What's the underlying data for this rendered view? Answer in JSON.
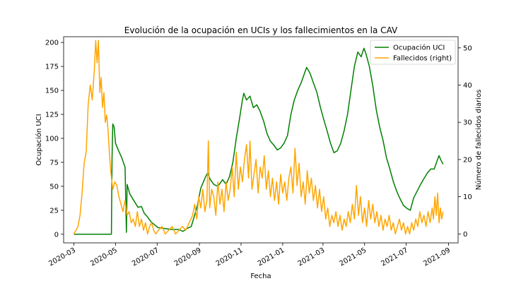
{
  "chart_data": {
    "type": "line",
    "title": "Evolución de la ocupación en UCIs y los fallecimientos en la CAV",
    "xlabel": "Fecha",
    "ylabel": "Ocupación UCI",
    "ylabel_right": "Número de fallecidos diarios",
    "x_ticks": [
      "2020-03",
      "2020-05",
      "2020-07",
      "2020-09",
      "2020-11",
      "2021-01",
      "2021-03",
      "2021-05",
      "2021-07",
      "2021-09"
    ],
    "y_ticks": [
      0,
      25,
      50,
      75,
      100,
      125,
      150,
      175,
      200
    ],
    "y_right_ticks": [
      0,
      10,
      20,
      30,
      40,
      50
    ],
    "xlim": [
      "2020-02-15",
      "2021-09-15"
    ],
    "ylim": [
      -9,
      206
    ],
    "ylim_right": [
      -2.4,
      53
    ],
    "legend_position": "top-right",
    "colors": {
      "uci": "#008000",
      "deaths": "#ffa500"
    },
    "series": [
      {
        "name": "Ocupación UCI",
        "axis": "left",
        "points": [
          [
            "2020-03-01",
            0
          ],
          [
            "2020-03-20",
            0
          ],
          [
            "2020-04-10",
            0
          ],
          [
            "2020-04-25",
            0
          ],
          [
            "2020-04-26",
            80
          ],
          [
            "2020-04-27",
            115
          ],
          [
            "2020-04-29",
            112
          ],
          [
            "2020-05-01",
            95
          ],
          [
            "2020-05-05",
            88
          ],
          [
            "2020-05-10",
            80
          ],
          [
            "2020-05-15",
            70
          ],
          [
            "2020-05-17",
            2
          ],
          [
            "2020-05-18",
            52
          ],
          [
            "2020-05-22",
            42
          ],
          [
            "2020-05-28",
            35
          ],
          [
            "2020-06-03",
            28
          ],
          [
            "2020-06-08",
            29
          ],
          [
            "2020-06-12",
            22
          ],
          [
            "2020-06-17",
            18
          ],
          [
            "2020-06-22",
            13
          ],
          [
            "2020-06-27",
            10
          ],
          [
            "2020-07-02",
            7
          ],
          [
            "2020-07-12",
            6
          ],
          [
            "2020-07-22",
            5
          ],
          [
            "2020-08-01",
            5
          ],
          [
            "2020-08-08",
            3
          ],
          [
            "2020-08-14",
            6
          ],
          [
            "2020-08-20",
            8
          ],
          [
            "2020-08-25",
            20
          ],
          [
            "2020-08-29",
            30
          ],
          [
            "2020-09-03",
            48
          ],
          [
            "2020-09-10",
            60
          ],
          [
            "2020-09-13",
            64
          ],
          [
            "2020-09-17",
            57
          ],
          [
            "2020-09-22",
            52
          ],
          [
            "2020-09-28",
            50
          ],
          [
            "2020-10-05",
            57
          ],
          [
            "2020-10-10",
            52
          ],
          [
            "2020-10-15",
            60
          ],
          [
            "2020-10-20",
            75
          ],
          [
            "2020-10-25",
            100
          ],
          [
            "2020-10-30",
            122
          ],
          [
            "2020-11-03",
            140
          ],
          [
            "2020-11-05",
            147
          ],
          [
            "2020-11-09",
            140
          ],
          [
            "2020-11-14",
            144
          ],
          [
            "2020-11-19",
            132
          ],
          [
            "2020-11-24",
            135
          ],
          [
            "2020-11-29",
            128
          ],
          [
            "2020-12-04",
            118
          ],
          [
            "2020-12-09",
            105
          ],
          [
            "2020-12-14",
            97
          ],
          [
            "2020-12-19",
            93
          ],
          [
            "2020-12-24",
            88
          ],
          [
            "2020-12-29",
            90
          ],
          [
            "2021-01-03",
            95
          ],
          [
            "2021-01-08",
            103
          ],
          [
            "2021-01-13",
            125
          ],
          [
            "2021-01-18",
            140
          ],
          [
            "2021-01-23",
            150
          ],
          [
            "2021-01-28",
            158
          ],
          [
            "2021-02-02",
            168
          ],
          [
            "2021-02-05",
            174
          ],
          [
            "2021-02-10",
            168
          ],
          [
            "2021-02-15",
            158
          ],
          [
            "2021-02-20",
            148
          ],
          [
            "2021-02-25",
            133
          ],
          [
            "2021-03-02",
            120
          ],
          [
            "2021-03-07",
            108
          ],
          [
            "2021-03-12",
            95
          ],
          [
            "2021-03-17",
            85
          ],
          [
            "2021-03-22",
            87
          ],
          [
            "2021-03-27",
            95
          ],
          [
            "2021-04-01",
            108
          ],
          [
            "2021-04-06",
            125
          ],
          [
            "2021-04-11",
            150
          ],
          [
            "2021-04-16",
            175
          ],
          [
            "2021-04-21",
            190
          ],
          [
            "2021-04-26",
            185
          ],
          [
            "2021-04-30",
            194
          ],
          [
            "2021-05-03",
            188
          ],
          [
            "2021-05-08",
            175
          ],
          [
            "2021-05-13",
            155
          ],
          [
            "2021-05-18",
            130
          ],
          [
            "2021-05-23",
            112
          ],
          [
            "2021-05-28",
            98
          ],
          [
            "2021-06-02",
            80
          ],
          [
            "2021-06-07",
            68
          ],
          [
            "2021-06-12",
            55
          ],
          [
            "2021-06-17",
            45
          ],
          [
            "2021-06-22",
            37
          ],
          [
            "2021-06-27",
            30
          ],
          [
            "2021-07-02",
            27
          ],
          [
            "2021-07-07",
            25
          ],
          [
            "2021-07-12",
            38
          ],
          [
            "2021-07-17",
            45
          ],
          [
            "2021-07-22",
            52
          ],
          [
            "2021-07-27",
            58
          ],
          [
            "2021-08-01",
            64
          ],
          [
            "2021-08-06",
            68
          ],
          [
            "2021-08-11",
            68
          ],
          [
            "2021-08-16",
            78
          ],
          [
            "2021-08-18",
            82
          ],
          [
            "2021-08-21",
            77
          ],
          [
            "2021-08-24",
            73
          ]
        ]
      },
      {
        "name": "Fallecidos (right)",
        "axis": "right",
        "points": [
          [
            "2020-03-01",
            0
          ],
          [
            "2020-03-04",
            1
          ],
          [
            "2020-03-07",
            2
          ],
          [
            "2020-03-10",
            5
          ],
          [
            "2020-03-13",
            11
          ],
          [
            "2020-03-16",
            19
          ],
          [
            "2020-03-19",
            22
          ],
          [
            "2020-03-22",
            35
          ],
          [
            "2020-03-25",
            40
          ],
          [
            "2020-03-28",
            36
          ],
          [
            "2020-03-31",
            44
          ],
          [
            "2020-04-02",
            52
          ],
          [
            "2020-04-04",
            46
          ],
          [
            "2020-04-06",
            52
          ],
          [
            "2020-04-08",
            38
          ],
          [
            "2020-04-10",
            42
          ],
          [
            "2020-04-12",
            34
          ],
          [
            "2020-04-14",
            38
          ],
          [
            "2020-04-16",
            30
          ],
          [
            "2020-04-18",
            32
          ],
          [
            "2020-04-20",
            28
          ],
          [
            "2020-04-22",
            22
          ],
          [
            "2020-04-24",
            17
          ],
          [
            "2020-04-27",
            12
          ],
          [
            "2020-04-30",
            14
          ],
          [
            "2020-05-03",
            13
          ],
          [
            "2020-05-06",
            10
          ],
          [
            "2020-05-09",
            8
          ],
          [
            "2020-05-12",
            6
          ],
          [
            "2020-05-15",
            9
          ],
          [
            "2020-05-18",
            5
          ],
          [
            "2020-05-21",
            6
          ],
          [
            "2020-05-24",
            3
          ],
          [
            "2020-05-27",
            4
          ],
          [
            "2020-05-30",
            2
          ],
          [
            "2020-06-02",
            6
          ],
          [
            "2020-06-05",
            2
          ],
          [
            "2020-06-08",
            4
          ],
          [
            "2020-06-11",
            1
          ],
          [
            "2020-06-14",
            3
          ],
          [
            "2020-06-17",
            0
          ],
          [
            "2020-06-20",
            2
          ],
          [
            "2020-06-23",
            3
          ],
          [
            "2020-06-26",
            1
          ],
          [
            "2020-06-29",
            0
          ],
          [
            "2020-07-03",
            1
          ],
          [
            "2020-07-08",
            2
          ],
          [
            "2020-07-13",
            0
          ],
          [
            "2020-07-18",
            1
          ],
          [
            "2020-07-23",
            2
          ],
          [
            "2020-07-28",
            0
          ],
          [
            "2020-08-02",
            1
          ],
          [
            "2020-08-07",
            2
          ],
          [
            "2020-08-12",
            1
          ],
          [
            "2020-08-17",
            3
          ],
          [
            "2020-08-22",
            5
          ],
          [
            "2020-08-25",
            8
          ],
          [
            "2020-08-28",
            4
          ],
          [
            "2020-08-31",
            10
          ],
          [
            "2020-09-03",
            7
          ],
          [
            "2020-09-06",
            12
          ],
          [
            "2020-09-09",
            6
          ],
          [
            "2020-09-12",
            9
          ],
          [
            "2020-09-14",
            25
          ],
          [
            "2020-09-16",
            7
          ],
          [
            "2020-09-19",
            12
          ],
          [
            "2020-09-22",
            10
          ],
          [
            "2020-09-25",
            5
          ],
          [
            "2020-09-28",
            14
          ],
          [
            "2020-10-01",
            8
          ],
          [
            "2020-10-04",
            12
          ],
          [
            "2020-10-07",
            6
          ],
          [
            "2020-10-10",
            14
          ],
          [
            "2020-10-13",
            9
          ],
          [
            "2020-10-16",
            12
          ],
          [
            "2020-10-19",
            18
          ],
          [
            "2020-10-22",
            10
          ],
          [
            "2020-10-25",
            22
          ],
          [
            "2020-10-28",
            12
          ],
          [
            "2020-10-31",
            18
          ],
          [
            "2020-11-03",
            14
          ],
          [
            "2020-11-06",
            20
          ],
          [
            "2020-11-09",
            24
          ],
          [
            "2020-11-12",
            15
          ],
          [
            "2020-11-14",
            25
          ],
          [
            "2020-11-17",
            12
          ],
          [
            "2020-11-20",
            16
          ],
          [
            "2020-11-23",
            20
          ],
          [
            "2020-11-26",
            11
          ],
          [
            "2020-11-29",
            18
          ],
          [
            "2020-12-02",
            15
          ],
          [
            "2020-12-05",
            21
          ],
          [
            "2020-12-08",
            12
          ],
          [
            "2020-12-11",
            17
          ],
          [
            "2020-12-14",
            10
          ],
          [
            "2020-12-17",
            15
          ],
          [
            "2020-12-20",
            9
          ],
          [
            "2020-12-23",
            14
          ],
          [
            "2020-12-26",
            8
          ],
          [
            "2020-12-29",
            16
          ],
          [
            "2021-01-01",
            11
          ],
          [
            "2021-01-04",
            14
          ],
          [
            "2021-01-07",
            9
          ],
          [
            "2021-01-10",
            15
          ],
          [
            "2021-01-13",
            18
          ],
          [
            "2021-01-16",
            11
          ],
          [
            "2021-01-19",
            23
          ],
          [
            "2021-01-22",
            13
          ],
          [
            "2021-01-25",
            19
          ],
          [
            "2021-01-28",
            10
          ],
          [
            "2021-01-31",
            14
          ],
          [
            "2021-02-03",
            8
          ],
          [
            "2021-02-06",
            17
          ],
          [
            "2021-02-09",
            11
          ],
          [
            "2021-02-12",
            15
          ],
          [
            "2021-02-15",
            9
          ],
          [
            "2021-02-18",
            13
          ],
          [
            "2021-02-21",
            7
          ],
          [
            "2021-02-24",
            12
          ],
          [
            "2021-02-27",
            6
          ],
          [
            "2021-03-02",
            10
          ],
          [
            "2021-03-05",
            4
          ],
          [
            "2021-03-08",
            7
          ],
          [
            "2021-03-11",
            2
          ],
          [
            "2021-03-14",
            5
          ],
          [
            "2021-03-17",
            3
          ],
          [
            "2021-03-20",
            6
          ],
          [
            "2021-03-23",
            2
          ],
          [
            "2021-03-26",
            5
          ],
          [
            "2021-03-29",
            1
          ],
          [
            "2021-04-01",
            4
          ],
          [
            "2021-04-04",
            2
          ],
          [
            "2021-04-07",
            6
          ],
          [
            "2021-04-10",
            3
          ],
          [
            "2021-04-13",
            8
          ],
          [
            "2021-04-16",
            4
          ],
          [
            "2021-04-19",
            13
          ],
          [
            "2021-04-22",
            5
          ],
          [
            "2021-04-25",
            10
          ],
          [
            "2021-04-28",
            3
          ],
          [
            "2021-05-01",
            7
          ],
          [
            "2021-05-04",
            2
          ],
          [
            "2021-05-07",
            9
          ],
          [
            "2021-05-10",
            4
          ],
          [
            "2021-05-13",
            8
          ],
          [
            "2021-05-16",
            3
          ],
          [
            "2021-05-19",
            6
          ],
          [
            "2021-05-22",
            2
          ],
          [
            "2021-05-25",
            5
          ],
          [
            "2021-05-28",
            1
          ],
          [
            "2021-05-31",
            4
          ],
          [
            "2021-06-03",
            2
          ],
          [
            "2021-06-06",
            5
          ],
          [
            "2021-06-09",
            1
          ],
          [
            "2021-06-12",
            3
          ],
          [
            "2021-06-15",
            0
          ],
          [
            "2021-06-18",
            2
          ],
          [
            "2021-06-21",
            4
          ],
          [
            "2021-06-24",
            1
          ],
          [
            "2021-06-27",
            3
          ],
          [
            "2021-06-30",
            0
          ],
          [
            "2021-07-03",
            2
          ],
          [
            "2021-07-06",
            0
          ],
          [
            "2021-07-09",
            3
          ],
          [
            "2021-07-12",
            1
          ],
          [
            "2021-07-15",
            4
          ],
          [
            "2021-07-18",
            2
          ],
          [
            "2021-07-21",
            6
          ],
          [
            "2021-07-24",
            3
          ],
          [
            "2021-07-27",
            5
          ],
          [
            "2021-07-30",
            2
          ],
          [
            "2021-08-02",
            6
          ],
          [
            "2021-08-05",
            3
          ],
          [
            "2021-08-08",
            7
          ],
          [
            "2021-08-10",
            4
          ],
          [
            "2021-08-12",
            10
          ],
          [
            "2021-08-14",
            5
          ],
          [
            "2021-08-16",
            11
          ],
          [
            "2021-08-18",
            3
          ],
          [
            "2021-08-20",
            7
          ],
          [
            "2021-08-22",
            4
          ],
          [
            "2021-08-24",
            6
          ]
        ]
      }
    ]
  }
}
